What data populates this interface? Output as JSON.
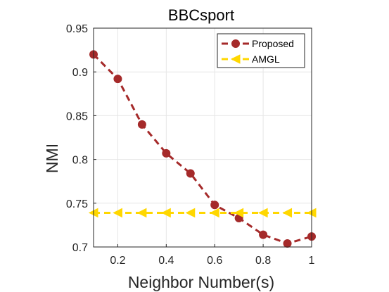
{
  "chart_data": {
    "type": "line",
    "title": "BBCsport",
    "xlabel": "Neighbor Number(s)",
    "ylabel": "NMI",
    "xlim": [
      0.1,
      1.0
    ],
    "ylim": [
      0.7,
      0.95
    ],
    "xticks": [
      0.2,
      0.4,
      0.6,
      0.8,
      1
    ],
    "xtick_labels": [
      "0.2",
      "0.4",
      "0.6",
      "0.8",
      "1"
    ],
    "yticks": [
      0.7,
      0.75,
      0.8,
      0.85,
      0.9,
      0.95
    ],
    "ytick_labels": [
      "0.7",
      "0.75",
      "0.8",
      "0.85",
      "0.9",
      "0.95"
    ],
    "grid": true,
    "legend_position": "top-right",
    "x": [
      0.1,
      0.2,
      0.3,
      0.4,
      0.5,
      0.6,
      0.7,
      0.8,
      0.9,
      1.0
    ],
    "series": [
      {
        "name": "Proposed",
        "color": "#a52a2a",
        "marker": "circle",
        "line_style": "dashed",
        "values": [
          0.92,
          0.892,
          0.84,
          0.807,
          0.784,
          0.748,
          0.733,
          0.714,
          0.704,
          0.712
        ]
      },
      {
        "name": "AMGL",
        "color": "#ffd700",
        "marker": "triangle-left",
        "line_style": "dashed",
        "values": [
          0.739,
          0.739,
          0.739,
          0.739,
          0.739,
          0.739,
          0.739,
          0.739,
          0.739,
          0.739
        ]
      }
    ]
  }
}
